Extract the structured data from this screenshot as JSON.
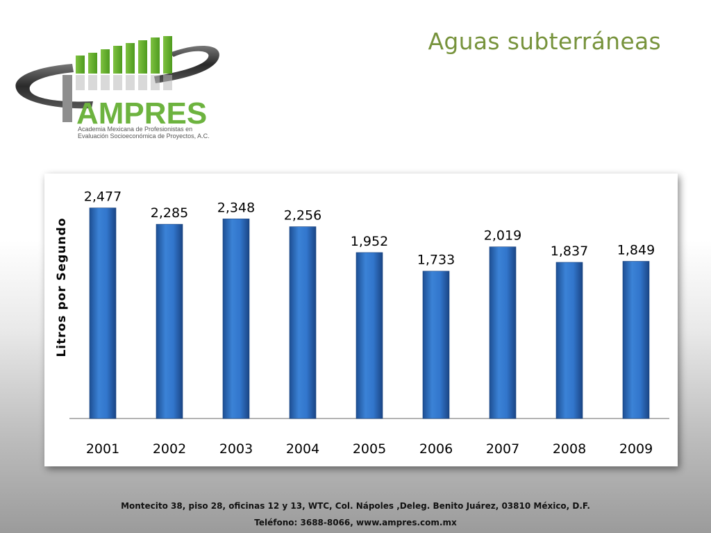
{
  "slide": {
    "title": "Aguas subterráneas"
  },
  "logo": {
    "text": "AMPRES",
    "tagline": "Academia Mexicana de Profesionistas en Evaluación Socioeconómica de Proyectos, A.C."
  },
  "chart_data": {
    "type": "bar",
    "categories": [
      "2001",
      "2002",
      "2003",
      "2004",
      "2005",
      "2006",
      "2007",
      "2008",
      "2009"
    ],
    "values": [
      2477,
      2285,
      2348,
      2256,
      1952,
      1733,
      2019,
      1837,
      1849
    ],
    "data_labels": [
      "2,477",
      "2,285",
      "2,348",
      "2,256",
      "1,952",
      "1,733",
      "2,019",
      "1,837",
      "1,849"
    ],
    "title": "",
    "xlabel": "",
    "ylabel": "Litros  por  Segundo",
    "ylim": [
      0,
      2800
    ],
    "grid": false,
    "bar_color": "#2e6fc2"
  },
  "footer": {
    "address": "Montecito 38, piso 28, oficinas 12 y 13, WTC, Col. Nápoles ,Deleg. Benito Juárez, 03810 México, D.F.",
    "phone": "Teléfono: 3688-8066, www.ampres.com.mx"
  }
}
